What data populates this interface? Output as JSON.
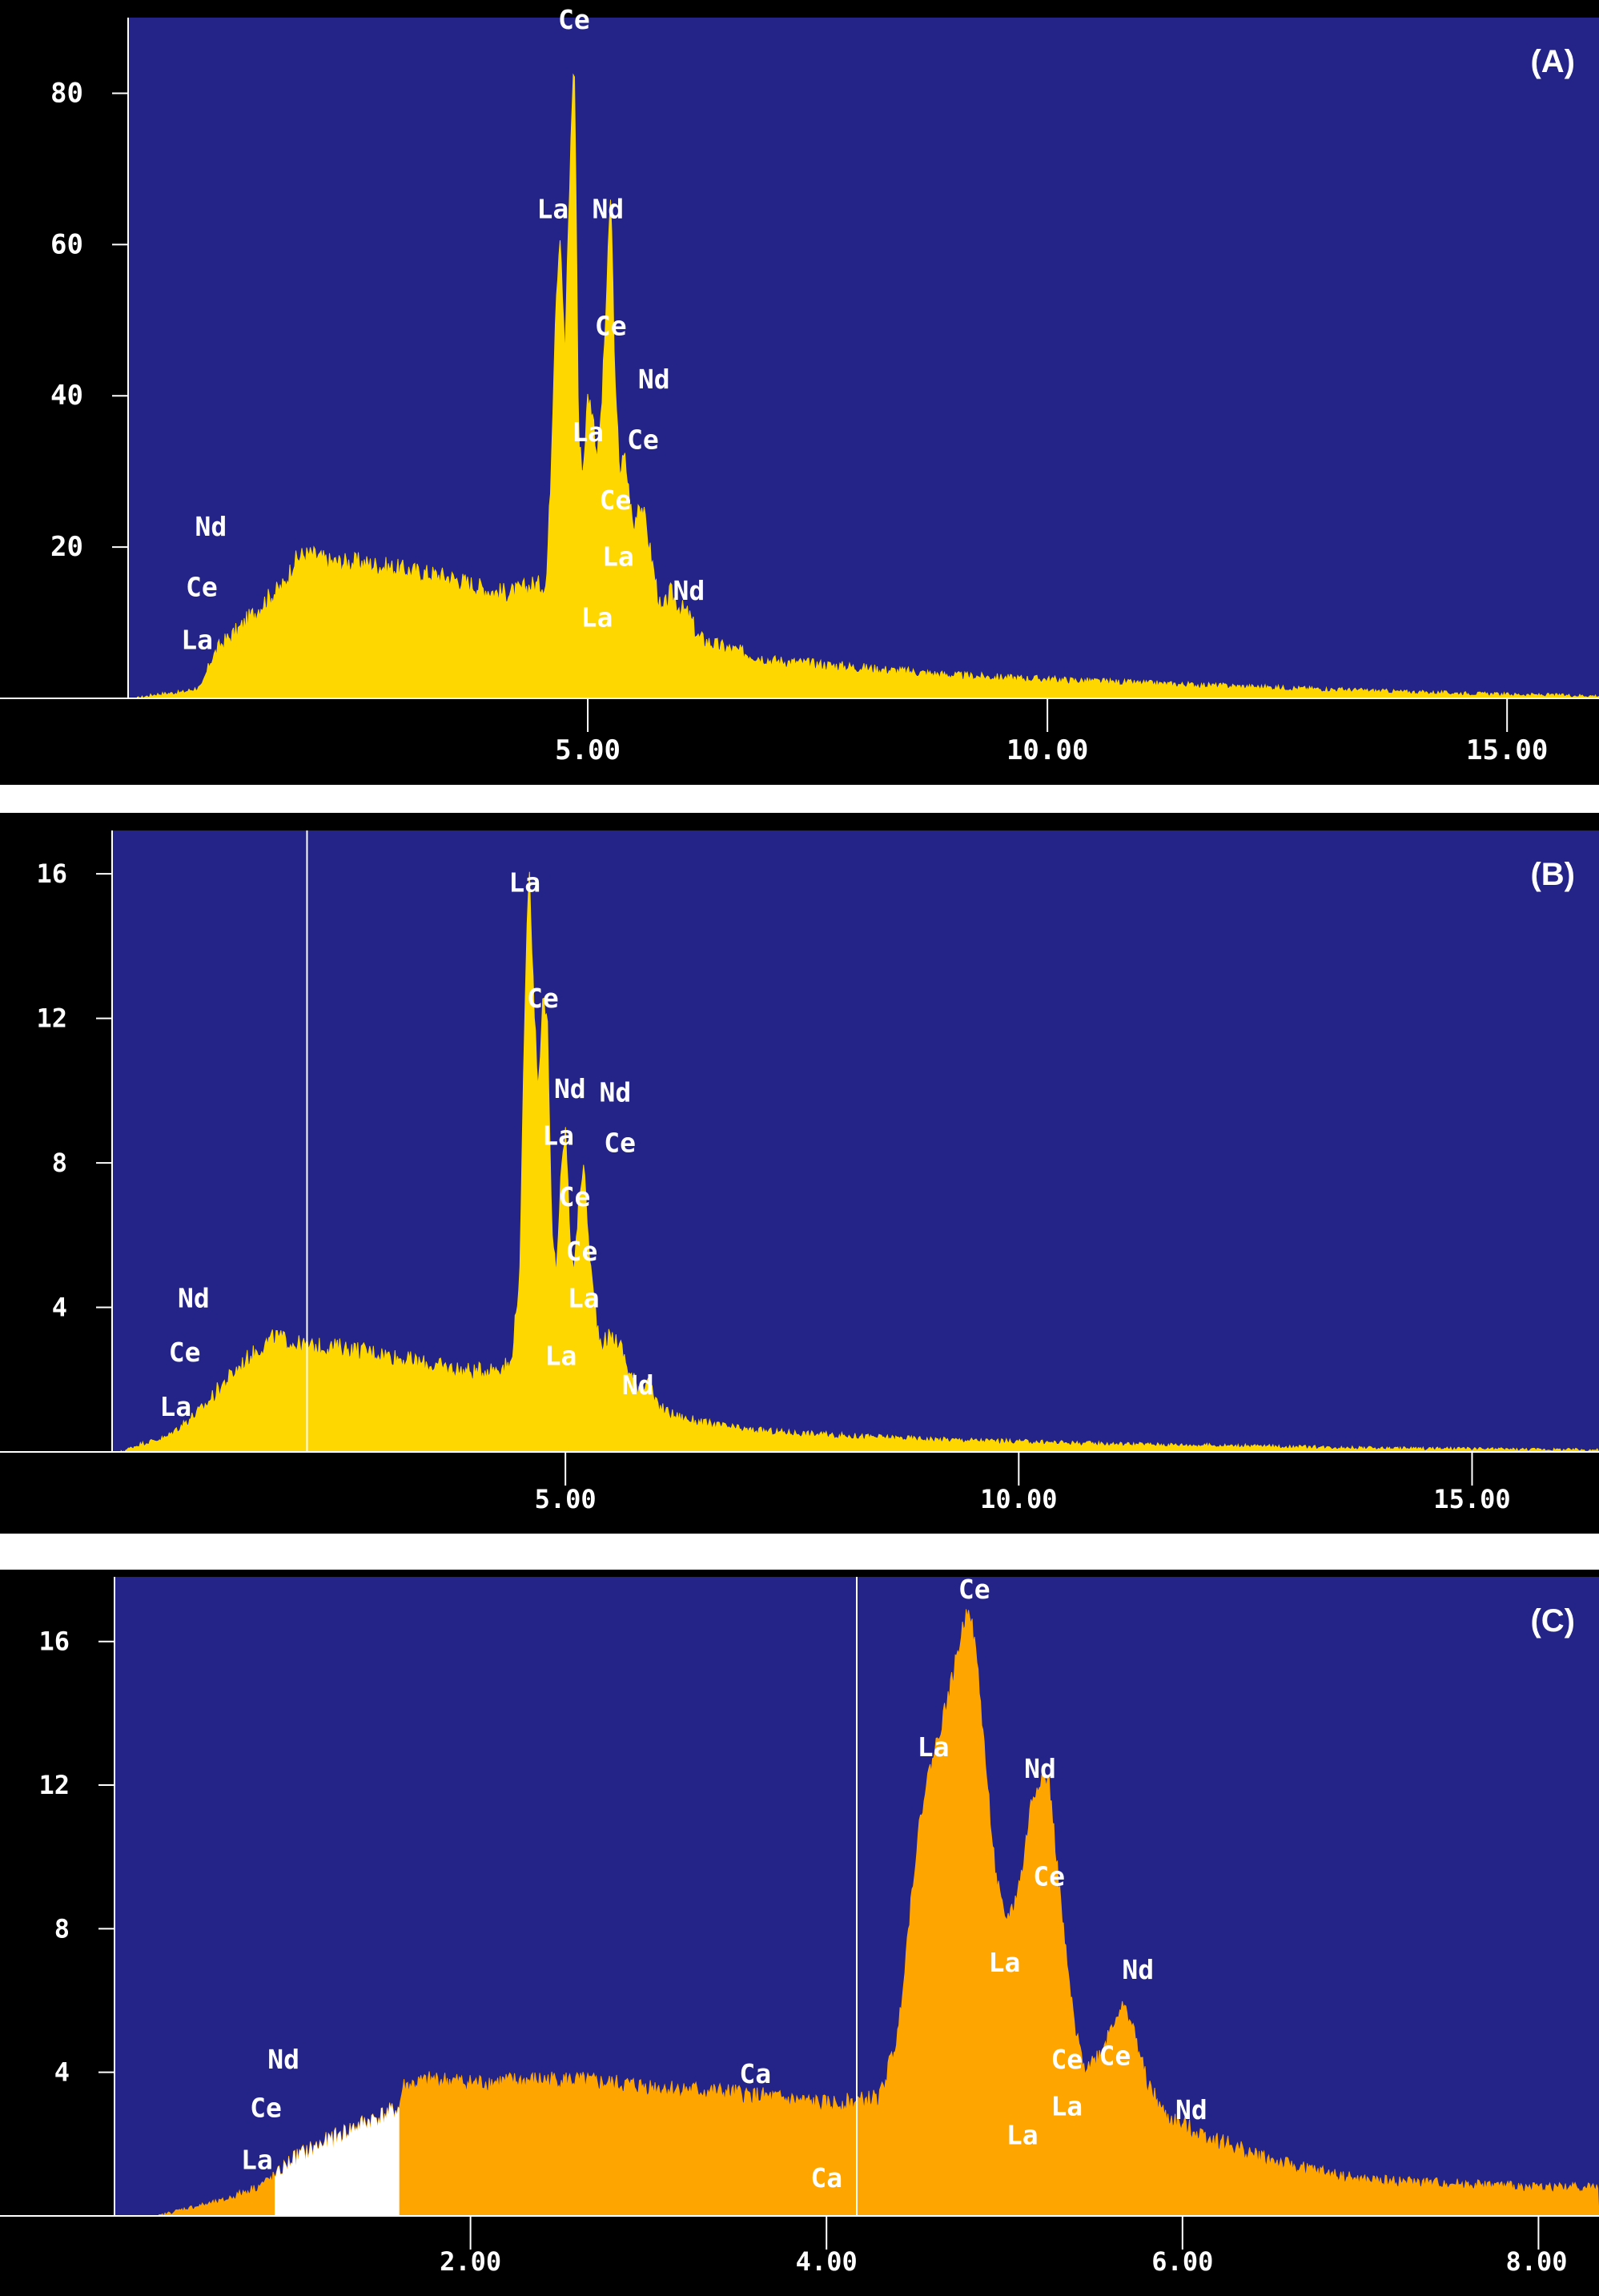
{
  "figure": {
    "panel_color": "#232388",
    "frame_color": "#000000",
    "label_color": "#ffffff"
  },
  "chart_data": [
    {
      "type": "area",
      "panel_label": "(A)",
      "fill_color": "#ffd700",
      "xlim": [
        0.0,
        16.0
      ],
      "ylim": [
        0,
        90
      ],
      "y_ticks": [
        20,
        40,
        60,
        80
      ],
      "y_tick_labels": [
        "20",
        "40",
        "60",
        "80"
      ],
      "x_ticks": [
        5,
        10,
        15
      ],
      "x_tick_labels": [
        "5.00",
        "10.00",
        "15.00"
      ],
      "marker_x": null,
      "highlight": null,
      "spectrum": {
        "x": [
          0.1,
          0.3,
          0.6,
          0.8,
          0.9,
          1.0,
          1.2,
          1.5,
          1.7,
          1.8,
          1.9,
          2.0,
          2.2,
          2.5,
          3.0,
          3.5,
          4.0,
          4.2,
          4.4,
          4.55,
          4.6,
          4.65,
          4.7,
          4.75,
          4.78,
          4.82,
          4.85,
          4.87,
          4.9,
          4.95,
          5.0,
          5.05,
          5.1,
          5.15,
          5.2,
          5.25,
          5.3,
          5.35,
          5.4,
          5.45,
          5.5,
          5.55,
          5.6,
          5.7,
          5.8,
          5.9,
          6.0,
          6.1,
          6.2,
          6.4,
          6.7,
          7.0,
          8.0,
          9.0,
          10.0,
          11.0,
          12.0,
          13.0,
          14.0,
          15.0,
          16.0
        ],
        "y": [
          0,
          0.5,
          0.8,
          1.5,
          5,
          7,
          9,
          13,
          15,
          18,
          19,
          19,
          18,
          18,
          17,
          16,
          14,
          14,
          15,
          15,
          30,
          52,
          62,
          45,
          58,
          75,
          86,
          70,
          34,
          30,
          40,
          38,
          32,
          38,
          52,
          67,
          40,
          30,
          32,
          27,
          22,
          26,
          25,
          18,
          11,
          14,
          12,
          11,
          8,
          7,
          6,
          5,
          4,
          3,
          2.5,
          2,
          1.6,
          1.2,
          0.8,
          0.5,
          0.3
        ]
      },
      "annotations": [
        {
          "text": "Ce",
          "x": 4.85,
          "y": 88.5
        },
        {
          "text": "La",
          "x": 4.62,
          "y": 63.5
        },
        {
          "text": "Nd",
          "x": 5.22,
          "y": 63.5
        },
        {
          "text": "Ce",
          "x": 5.25,
          "y": 48.0
        },
        {
          "text": "Nd",
          "x": 5.72,
          "y": 41.0
        },
        {
          "text": "La",
          "x": 5.0,
          "y": 34.0
        },
        {
          "text": "Ce",
          "x": 5.6,
          "y": 33.0
        },
        {
          "text": "Ce",
          "x": 5.3,
          "y": 25.0
        },
        {
          "text": "La",
          "x": 5.33,
          "y": 17.5
        },
        {
          "text": "Nd",
          "x": 6.1,
          "y": 13.0
        },
        {
          "text": "La",
          "x": 5.1,
          "y": 9.5
        },
        {
          "text": "Nd",
          "x": 0.9,
          "y": 21.5
        },
        {
          "text": "Ce",
          "x": 0.8,
          "y": 13.5
        },
        {
          "text": "La",
          "x": 0.75,
          "y": 6.5
        }
      ]
    },
    {
      "type": "area",
      "panel_label": "(B)",
      "fill_color": "#ffd700",
      "xlim": [
        0.0,
        16.4
      ],
      "ylim": [
        0,
        17.2
      ],
      "y_ticks": [
        4,
        8,
        12,
        16
      ],
      "y_tick_labels": [
        "4",
        "8",
        "12",
        "16"
      ],
      "x_ticks": [
        5,
        10,
        15
      ],
      "x_tick_labels": [
        "5.00",
        "10.00",
        "15.00"
      ],
      "marker_x": 2.15,
      "highlight": null,
      "spectrum": {
        "x": [
          0.1,
          0.3,
          0.6,
          0.8,
          1.0,
          1.2,
          1.5,
          1.7,
          1.8,
          1.9,
          2.0,
          2.2,
          2.5,
          3.0,
          3.5,
          4.0,
          4.2,
          4.4,
          4.5,
          4.55,
          4.6,
          4.63,
          4.66,
          4.7,
          4.75,
          4.8,
          4.85,
          4.9,
          4.95,
          5.0,
          5.05,
          5.1,
          5.15,
          5.2,
          5.25,
          5.3,
          5.35,
          5.4,
          5.5,
          5.6,
          5.7,
          5.8,
          5.9,
          6.0,
          6.2,
          6.5,
          7.0,
          8.0,
          9.0,
          10.0,
          11.0,
          12.0,
          13.0,
          14.0,
          15.0,
          16.4
        ],
        "y": [
          0,
          0.2,
          0.4,
          0.8,
          1.2,
          1.8,
          2.6,
          3.0,
          3.2,
          3.1,
          3.0,
          2.9,
          2.9,
          2.7,
          2.4,
          2.2,
          2.3,
          2.4,
          5,
          12,
          16.5,
          14,
          12,
          10,
          12.5,
          12,
          6,
          5,
          7.5,
          9,
          6,
          5,
          7,
          8,
          6,
          4.5,
          3.5,
          3,
          3.2,
          3,
          2.2,
          1.8,
          2.0,
          1.3,
          1.0,
          0.8,
          0.6,
          0.45,
          0.35,
          0.28,
          0.22,
          0.18,
          0.14,
          0.1,
          0.08,
          0.05
        ]
      },
      "annotations": [
        {
          "text": "La",
          "x": 4.55,
          "y": 15.5
        },
        {
          "text": "Ce",
          "x": 4.75,
          "y": 12.3
        },
        {
          "text": "Nd",
          "x": 5.05,
          "y": 9.8
        },
        {
          "text": "Nd",
          "x": 5.55,
          "y": 9.7
        },
        {
          "text": "La",
          "x": 4.92,
          "y": 8.5
        },
        {
          "text": "Ce",
          "x": 5.6,
          "y": 8.3
        },
        {
          "text": "Ce",
          "x": 5.1,
          "y": 6.8
        },
        {
          "text": "Ce",
          "x": 5.18,
          "y": 5.3
        },
        {
          "text": "La",
          "x": 5.2,
          "y": 4.0
        },
        {
          "text": "La",
          "x": 4.95,
          "y": 2.4
        },
        {
          "text": "Nd",
          "x": 5.8,
          "y": 1.6
        },
        {
          "text": "Nd",
          "x": 0.9,
          "y": 4.0
        },
        {
          "text": "Ce",
          "x": 0.8,
          "y": 2.5
        },
        {
          "text": "La",
          "x": 0.7,
          "y": 1.0
        }
      ]
    },
    {
      "type": "area",
      "panel_label": "(C)",
      "fill_color": "#ffa500",
      "highlight_color": "#ffffff",
      "xlim": [
        0.0,
        8.34
      ],
      "ylim": [
        0,
        17.8
      ],
      "y_ticks": [
        4,
        8,
        12,
        16
      ],
      "y_tick_labels": [
        "4",
        "8",
        "12",
        "16"
      ],
      "x_ticks": [
        2,
        4,
        6,
        8
      ],
      "x_tick_labels": [
        "2.00",
        "4.00",
        "6.00",
        "8.00"
      ],
      "marker_x": 4.17,
      "highlight": [
        0.9,
        1.6
      ],
      "spectrum": {
        "x": [
          0.25,
          0.4,
          0.6,
          0.8,
          0.9,
          1.0,
          1.2,
          1.4,
          1.6,
          1.62,
          1.8,
          2.0,
          2.5,
          3.0,
          3.5,
          4.0,
          4.2,
          4.3,
          4.4,
          4.45,
          4.5,
          4.55,
          4.6,
          4.65,
          4.7,
          4.75,
          4.8,
          4.85,
          4.9,
          4.95,
          5.0,
          5.05,
          5.1,
          5.15,
          5.2,
          5.25,
          5.3,
          5.35,
          5.4,
          5.45,
          5.5,
          5.55,
          5.6,
          5.65,
          5.7,
          5.75,
          5.8,
          5.9,
          6.0,
          6.1,
          6.2,
          6.4,
          6.6,
          6.8,
          7.0,
          7.5,
          8.0,
          8.34
        ],
        "y": [
          0,
          0.2,
          0.4,
          0.8,
          1.1,
          1.6,
          2.1,
          2.6,
          3.0,
          3.6,
          3.8,
          3.7,
          3.8,
          3.6,
          3.4,
          3.1,
          3.2,
          3.3,
          5.0,
          7.5,
          10.0,
          11.8,
          12.8,
          13.8,
          14.8,
          16.0,
          17.1,
          15.2,
          12.2,
          9.5,
          8.2,
          8.6,
          9.6,
          11.5,
          12.2,
          12.1,
          9.5,
          7.0,
          5.0,
          4.2,
          4.3,
          4.6,
          5.3,
          5.8,
          5.6,
          4.7,
          3.7,
          2.8,
          2.5,
          2.3,
          2.1,
          1.7,
          1.4,
          1.2,
          1.0,
          0.9,
          0.8,
          0.8
        ]
      },
      "annotations": [
        {
          "text": "Ce",
          "x": 4.83,
          "y": 17.2
        },
        {
          "text": "La",
          "x": 4.6,
          "y": 12.8
        },
        {
          "text": "Nd",
          "x": 5.2,
          "y": 12.2
        },
        {
          "text": "Ce",
          "x": 5.25,
          "y": 9.2
        },
        {
          "text": "La",
          "x": 5.0,
          "y": 6.8
        },
        {
          "text": "Nd",
          "x": 5.75,
          "y": 6.6
        },
        {
          "text": "Ce",
          "x": 5.35,
          "y": 4.1
        },
        {
          "text": "Ce",
          "x": 5.62,
          "y": 4.2
        },
        {
          "text": "La",
          "x": 5.35,
          "y": 2.8
        },
        {
          "text": "La",
          "x": 5.1,
          "y": 2.0
        },
        {
          "text": "Ca",
          "x": 3.6,
          "y": 3.7
        },
        {
          "text": "Ca",
          "x": 4.0,
          "y": 0.8
        },
        {
          "text": "Nd",
          "x": 6.05,
          "y": 2.7
        },
        {
          "text": "Nd",
          "x": 0.95,
          "y": 4.1
        },
        {
          "text": "Ce",
          "x": 0.85,
          "y": 2.75
        },
        {
          "text": "La",
          "x": 0.8,
          "y": 1.3
        }
      ]
    }
  ]
}
